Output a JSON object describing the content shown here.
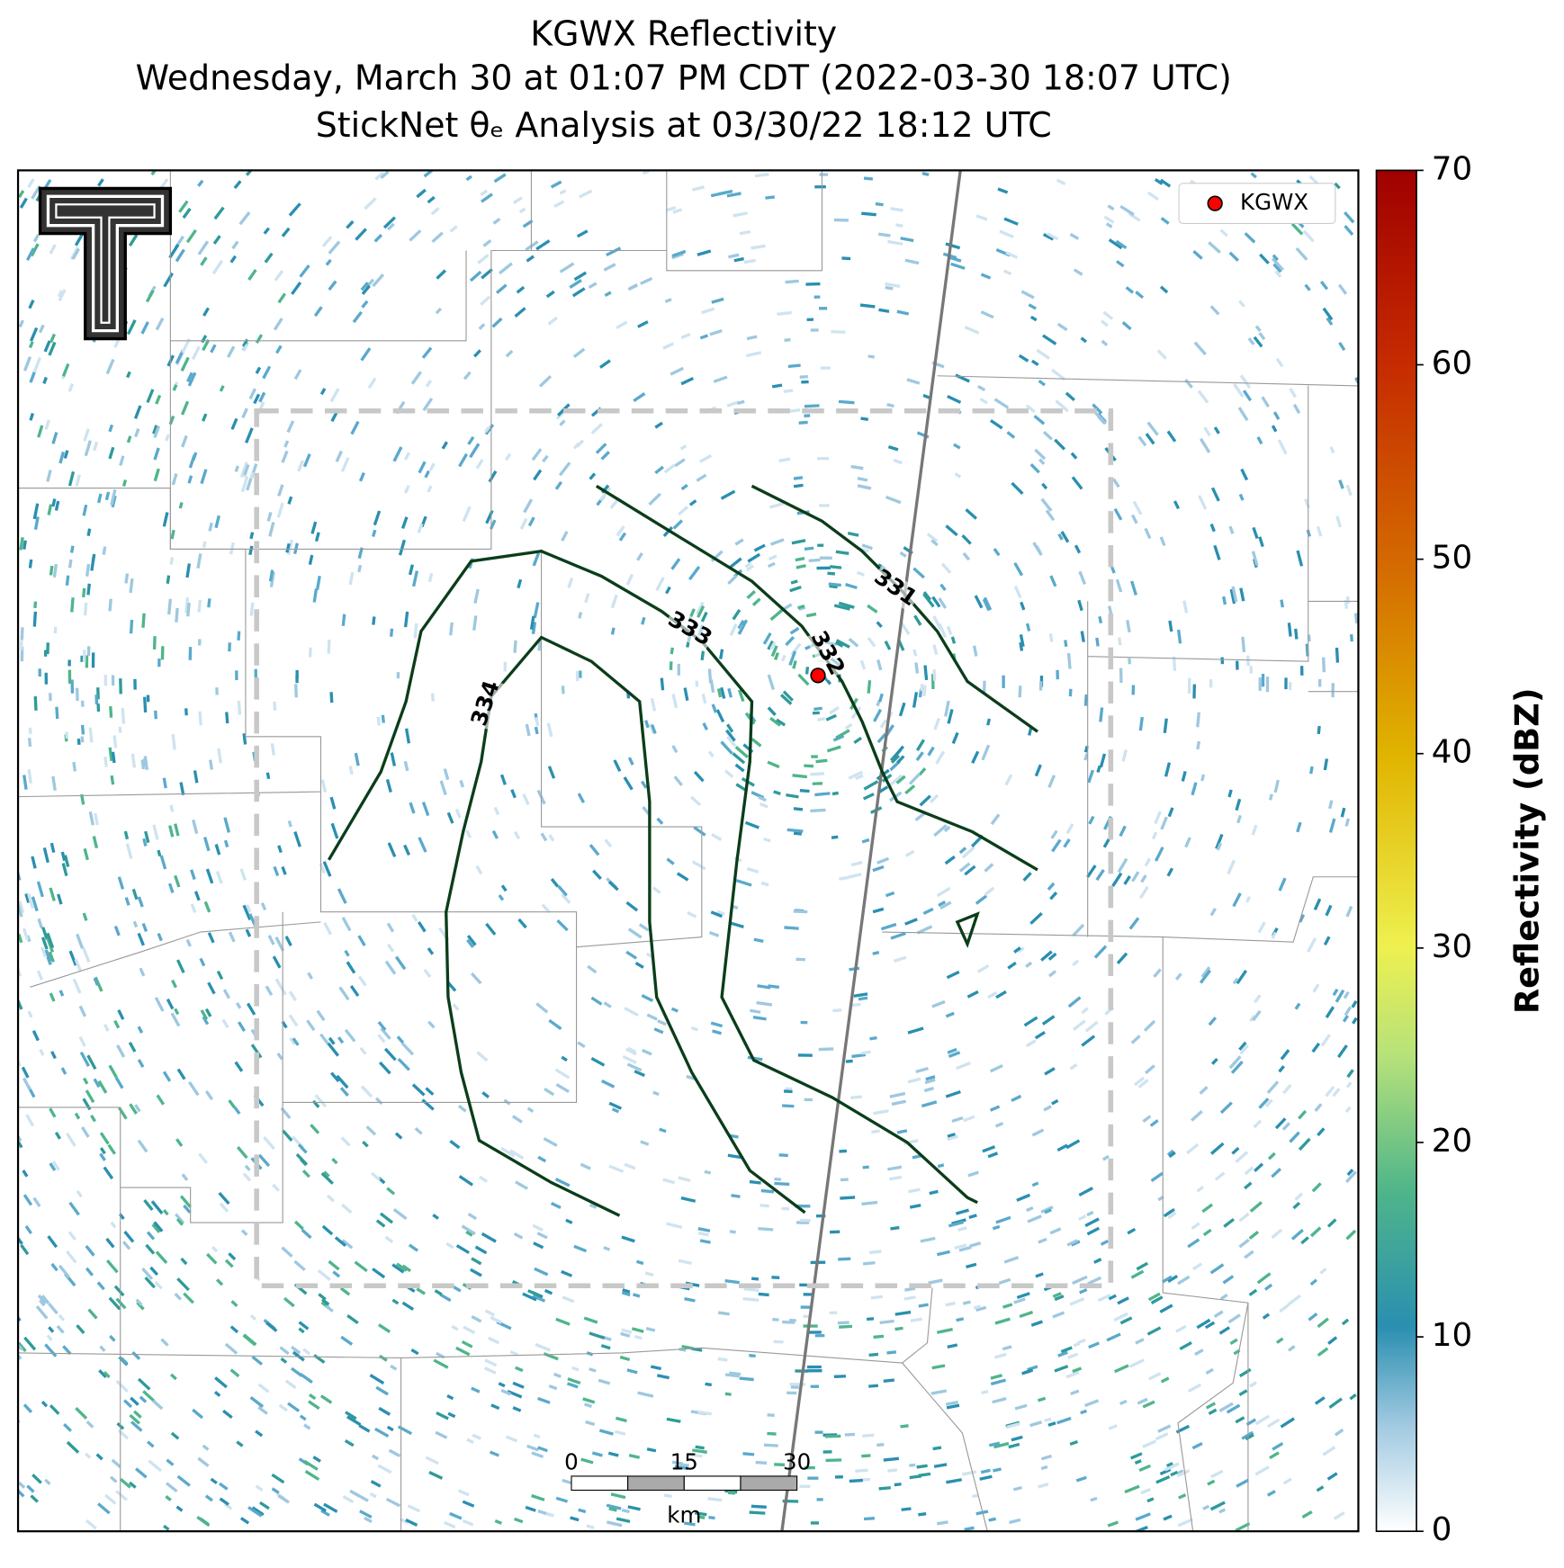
{
  "chart_data": {
    "type": "map",
    "title": "KGWX Reflectivity",
    "subtitle": "Wednesday, March 30 at 01:07 PM CDT (2022-03-30 18:07 UTC)",
    "subtitle2": "StickNet θₑ Analysis at 03/30/22 18:12 UTC",
    "legend": {
      "label": "KGWX",
      "color": "#ff0000",
      "corner": "upper right"
    },
    "contours": {
      "color": "#0b3d1a",
      "levels": [
        331,
        332,
        333,
        334
      ]
    },
    "scale_bar": {
      "ticks": [
        0,
        15,
        30
      ],
      "unit": "km"
    },
    "colorbar": {
      "label": "Reflectivity (dBZ)",
      "lim": [
        0,
        70
      ],
      "ticks": [
        0,
        10,
        20,
        30,
        40,
        50,
        60,
        70
      ]
    }
  }
}
